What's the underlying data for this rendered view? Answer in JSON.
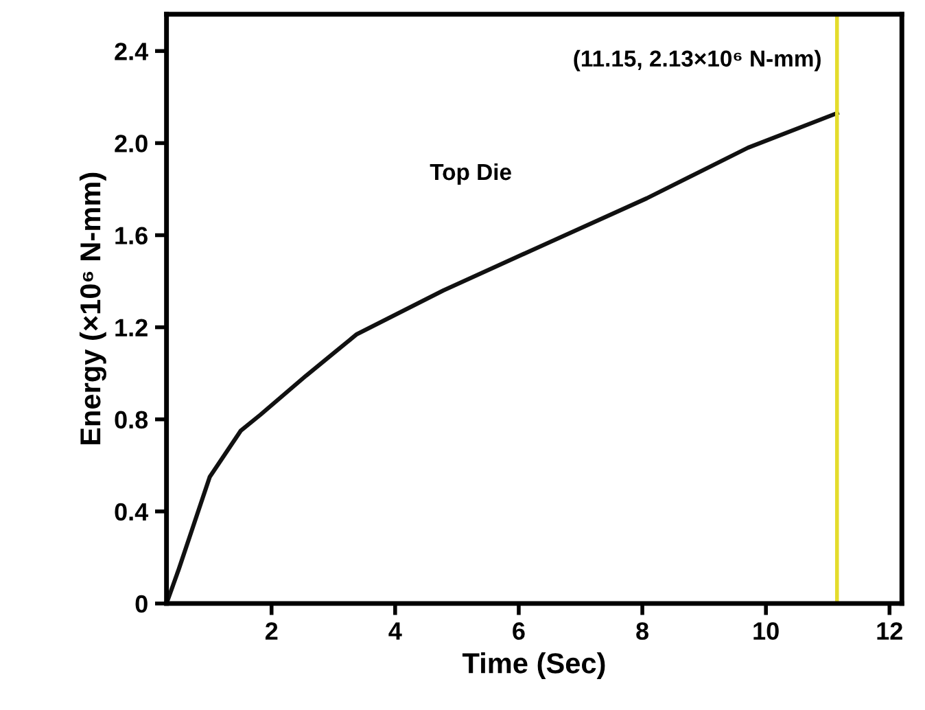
{
  "chart_data": {
    "type": "line",
    "xlabel": "Time (Sec)",
    "ylabel": "Energy (×10⁶ N-mm)",
    "xlim": [
      0.3,
      12.2
    ],
    "ylim": [
      0,
      2.56
    ],
    "xticks": [
      2,
      4,
      6,
      8,
      10,
      12
    ],
    "yticks": [
      0,
      0.4,
      0.8,
      1.2,
      1.6,
      {
        "value": 2.0,
        "label": "2.0"
      },
      2.4
    ],
    "series": [
      {
        "name": "Top Die",
        "color": "#111111",
        "x": [
          0.3,
          0.5,
          0.75,
          1.0,
          1.5,
          1.82,
          2.56,
          3.38,
          4.78,
          6.42,
          8.07,
          9.71,
          11.15
        ],
        "values": [
          0,
          0.15,
          0.35,
          0.55,
          0.75,
          0.82,
          0.99,
          1.17,
          1.36,
          1.56,
          1.76,
          1.98,
          2.13
        ]
      }
    ],
    "ref_lines": [
      {
        "axis": "x",
        "value": 11.15,
        "color": "#e4dc2c"
      }
    ],
    "annotations": [
      {
        "text": "(11.15, 2.13×10⁶ N-mm)",
        "x": 11.15,
        "y": 2.13
      }
    ],
    "grid": false,
    "legend": false
  }
}
